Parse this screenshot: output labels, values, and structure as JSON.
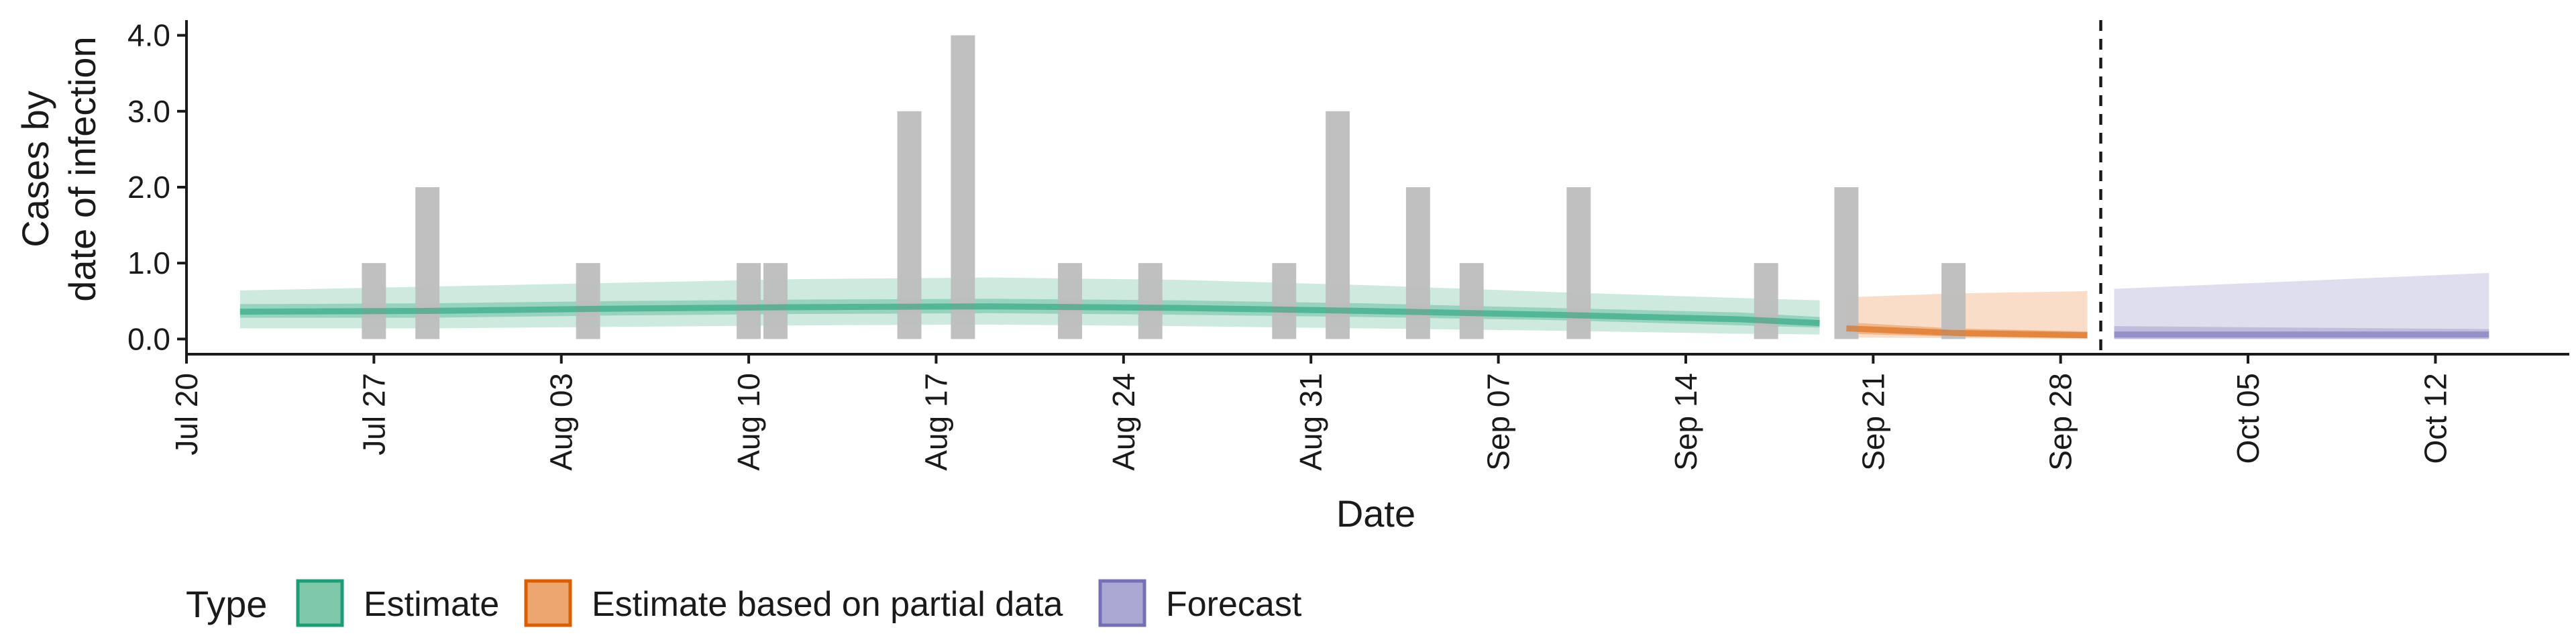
{
  "chart_data": {
    "type": "bar",
    "xlabel": "Date",
    "ylabel_lines": [
      "Cases by",
      "date of infection"
    ],
    "y_ticks": [
      0.0,
      1.0,
      2.0,
      3.0,
      4.0
    ],
    "y_tick_labels": [
      "0.0",
      "1.0",
      "2.0",
      "3.0",
      "4.0"
    ],
    "ylim": [
      -0.2,
      4.2
    ],
    "xlim": [
      "2020-07-20",
      "2020-10-17"
    ],
    "x_ticks": [
      {
        "date": "2020-07-20",
        "label": "Jul 20"
      },
      {
        "date": "2020-07-27",
        "label": "Jul 27"
      },
      {
        "date": "2020-08-03",
        "label": "Aug 03"
      },
      {
        "date": "2020-08-10",
        "label": "Aug 10"
      },
      {
        "date": "2020-08-17",
        "label": "Aug 17"
      },
      {
        "date": "2020-08-24",
        "label": "Aug 24"
      },
      {
        "date": "2020-08-31",
        "label": "Aug 31"
      },
      {
        "date": "2020-09-07",
        "label": "Sep 07"
      },
      {
        "date": "2020-09-14",
        "label": "Sep 14"
      },
      {
        "date": "2020-09-21",
        "label": "Sep 21"
      },
      {
        "date": "2020-09-28",
        "label": "Sep 28"
      },
      {
        "date": "2020-10-05",
        "label": "Oct 05"
      },
      {
        "date": "2020-10-12",
        "label": "Oct 12"
      }
    ],
    "forecast_start": "2020-09-29",
    "observed_cases": {
      "x": [
        "2020-07-27",
        "2020-07-29",
        "2020-08-04",
        "2020-08-10",
        "2020-08-11",
        "2020-08-16",
        "2020-08-18",
        "2020-08-22",
        "2020-08-25",
        "2020-08-30",
        "2020-09-01",
        "2020-09-04",
        "2020-09-06",
        "2020-09-10",
        "2020-09-17",
        "2020-09-20",
        "2020-09-24"
      ],
      "y": [
        1,
        2,
        1,
        1,
        1,
        3,
        4,
        1,
        1,
        1,
        3,
        2,
        1,
        2,
        1,
        2,
        1
      ],
      "color": "#bdbdbd"
    },
    "legend": {
      "title": "Type",
      "placement": "bottom",
      "entries": [
        {
          "label": "Estimate",
          "fill": "#7fc8a9",
          "stroke": "#1b9e77"
        },
        {
          "label": "Estimate based on partial data",
          "fill": "#eea670",
          "stroke": "#d95f02"
        },
        {
          "label": "Forecast",
          "fill": "#aba9d3",
          "stroke": "#7570b3"
        }
      ]
    },
    "series": [
      {
        "name": "Estimate",
        "color": "#1b9e77",
        "x": [
          "2020-07-22",
          "2020-07-29",
          "2020-08-05",
          "2020-08-12",
          "2020-08-19",
          "2020-08-26",
          "2020-09-02",
          "2020-09-09",
          "2020-09-16",
          "2020-09-19"
        ],
        "median": [
          0.36,
          0.37,
          0.4,
          0.42,
          0.43,
          0.41,
          0.37,
          0.32,
          0.26,
          0.21
        ],
        "lower_90": [
          0.14,
          0.14,
          0.16,
          0.18,
          0.19,
          0.17,
          0.14,
          0.11,
          0.07,
          0.06
        ],
        "upper_90": [
          0.64,
          0.69,
          0.74,
          0.79,
          0.81,
          0.78,
          0.71,
          0.62,
          0.54,
          0.51
        ],
        "lower_50": [
          0.28,
          0.28,
          0.31,
          0.33,
          0.34,
          0.32,
          0.29,
          0.25,
          0.18,
          0.15
        ],
        "upper_50": [
          0.46,
          0.47,
          0.5,
          0.52,
          0.53,
          0.51,
          0.47,
          0.41,
          0.35,
          0.29
        ]
      },
      {
        "name": "Estimate based on partial data",
        "color": "#d95f02",
        "x": [
          "2020-09-20",
          "2020-09-24",
          "2020-09-29"
        ],
        "median": [
          0.14,
          0.08,
          0.05
        ],
        "lower_90": [
          0.02,
          0.01,
          0.0
        ],
        "upper_90": [
          0.55,
          0.6,
          0.63
        ],
        "lower_50": [
          0.07,
          0.03,
          0.01
        ],
        "upper_50": [
          0.22,
          0.14,
          0.1
        ]
      },
      {
        "name": "Forecast",
        "color": "#7570b3",
        "x": [
          "2020-09-30",
          "2020-10-14"
        ],
        "median": [
          0.06,
          0.06
        ],
        "lower_90": [
          0.0,
          0.0
        ],
        "upper_90": [
          0.66,
          0.87
        ],
        "lower_50": [
          0.0,
          0.0
        ],
        "upper_50": [
          0.17,
          0.13
        ]
      }
    ]
  }
}
